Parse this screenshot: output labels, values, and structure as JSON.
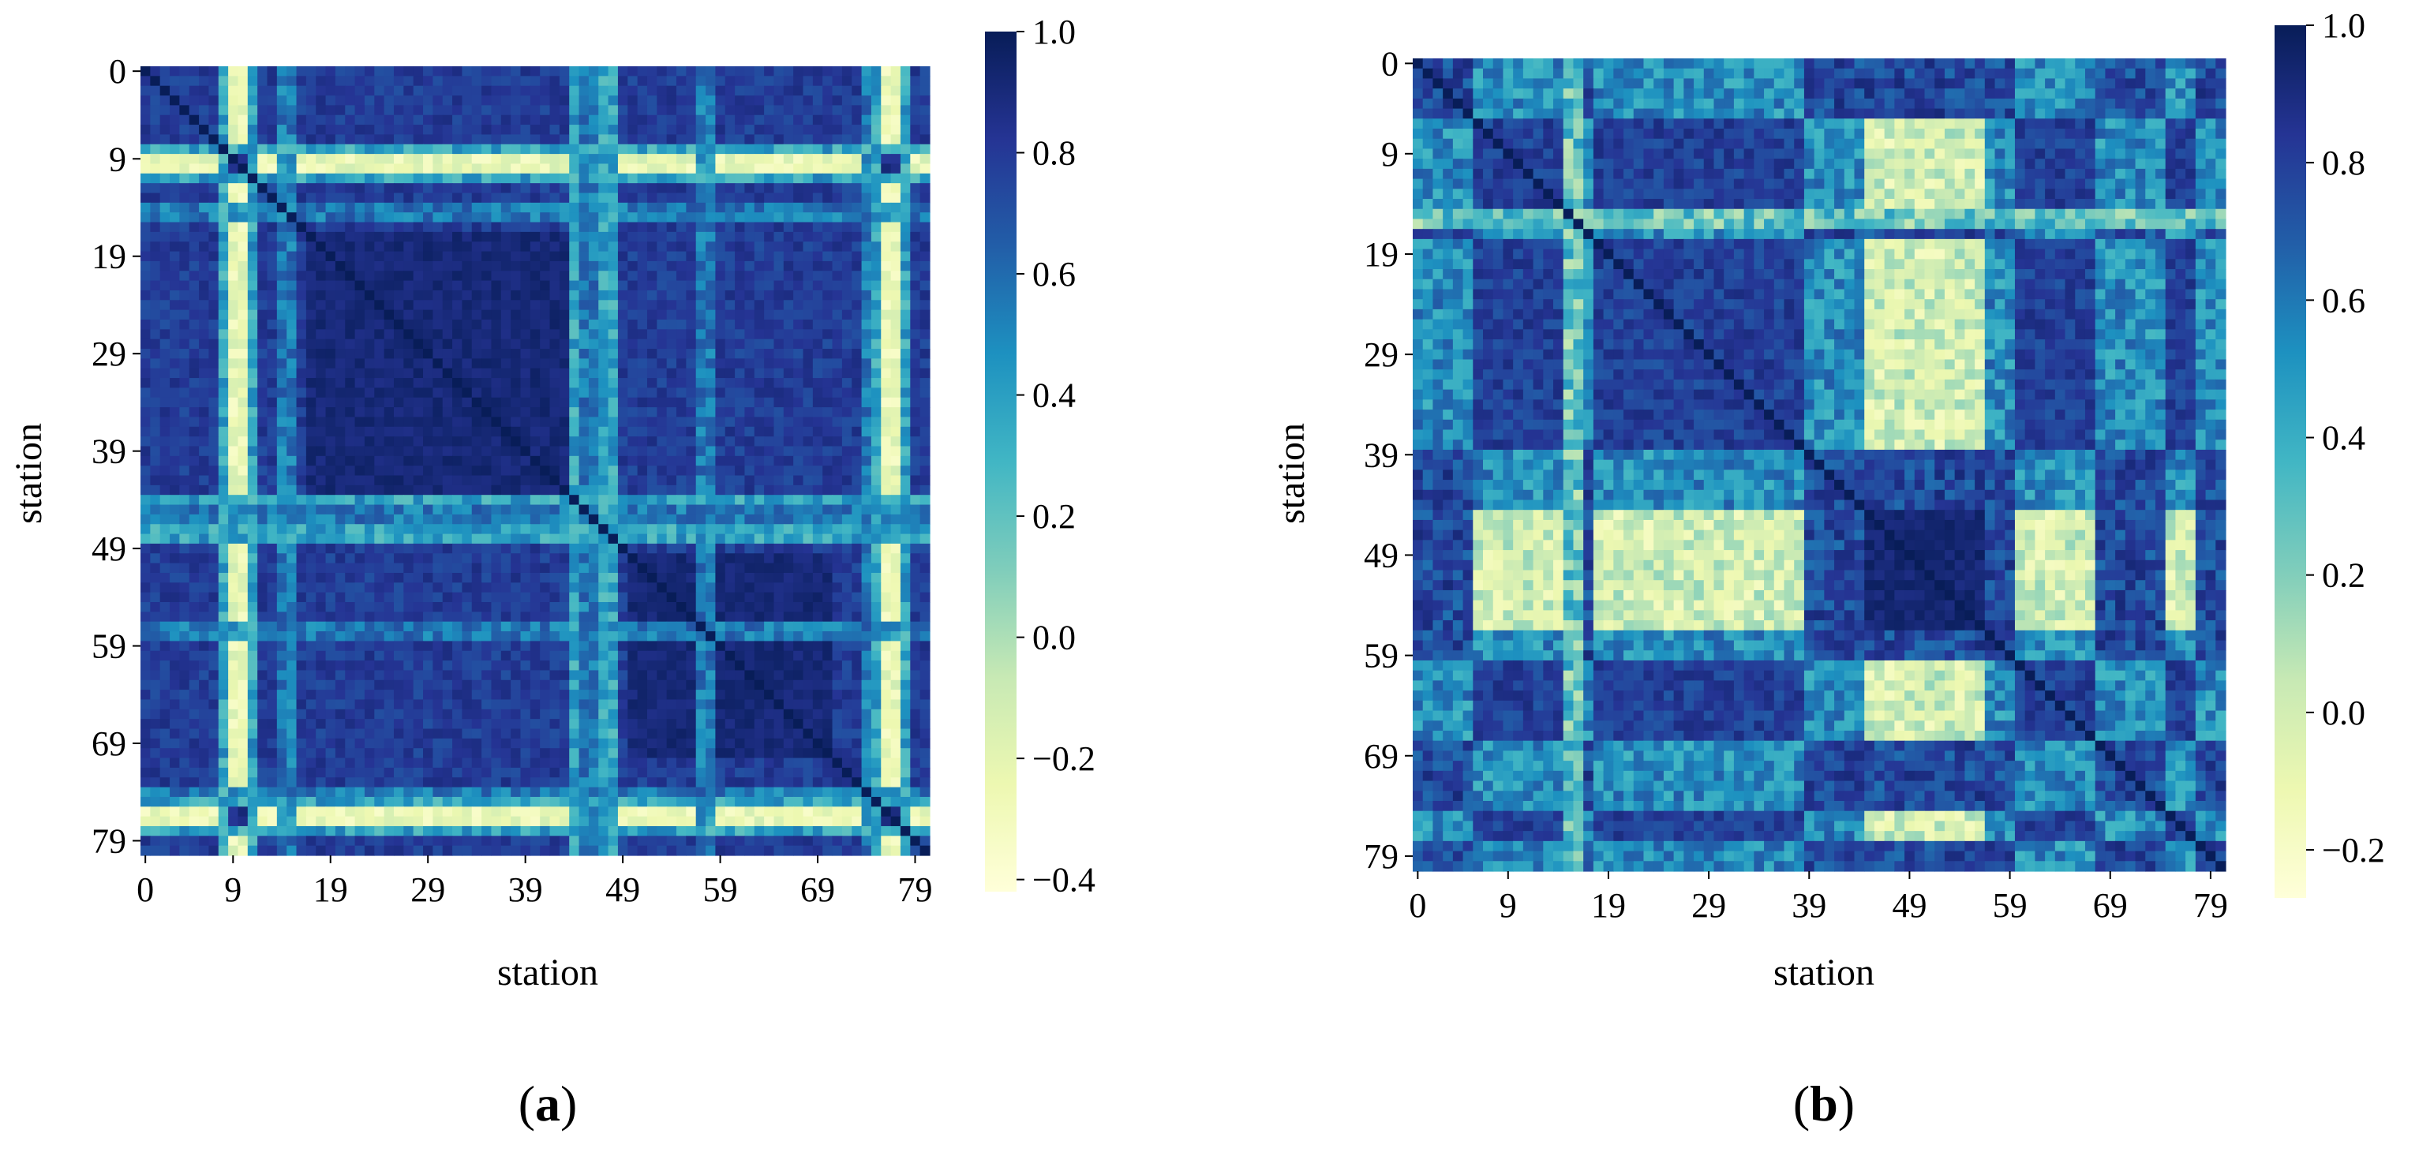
{
  "chart_data": [
    {
      "type": "heatmap",
      "panel": "a",
      "xlabel": "station",
      "ylabel": "station",
      "n": 81,
      "x_ticks": [
        "0",
        "9",
        "19",
        "29",
        "39",
        "49",
        "59",
        "69",
        "79"
      ],
      "y_ticks": [
        "0",
        "9",
        "19",
        "29",
        "39",
        "49",
        "59",
        "69",
        "79"
      ],
      "colorbar": {
        "min": -0.42,
        "max": 1.0,
        "ticks": [
          "1.0",
          "0.8",
          "0.6",
          "0.4",
          "0.2",
          "0.0",
          "−0.2",
          "−0.4"
        ],
        "tick_values": [
          1.0,
          0.8,
          0.6,
          0.4,
          0.2,
          0.0,
          -0.2,
          -0.4
        ]
      },
      "colormap": "YlGnBu",
      "stations": {
        "very_low": [
          9,
          10,
          76,
          77
        ],
        "low": [
          8,
          11,
          44,
          47,
          48,
          75,
          78
        ],
        "medium": [
          14,
          15,
          45,
          46,
          57,
          58,
          74
        ]
      },
      "blocks": [
        [
          17,
          43
        ],
        [
          50,
          70
        ]
      ]
    },
    {
      "type": "heatmap",
      "panel": "b",
      "xlabel": "station",
      "ylabel": "station",
      "n": 81,
      "x_ticks": [
        "0",
        "9",
        "19",
        "29",
        "39",
        "49",
        "59",
        "69",
        "79"
      ],
      "y_ticks": [
        "0",
        "9",
        "19",
        "29",
        "39",
        "49",
        "59",
        "69",
        "79"
      ],
      "colorbar": {
        "min": -0.27,
        "max": 1.0,
        "ticks": [
          "1.0",
          "0.8",
          "0.6",
          "0.4",
          "0.2",
          "0.0",
          "−0.2"
        ],
        "tick_values": [
          1.0,
          0.8,
          0.6,
          0.4,
          0.2,
          0.0,
          -0.2
        ]
      },
      "colormap": "YlGnBu",
      "groups": {
        "A": [
          [
            0,
            5
          ],
          [
            15,
            17
          ],
          [
            39,
            44
          ],
          [
            57,
            59
          ],
          [
            68,
            74
          ],
          [
            78,
            80
          ]
        ],
        "B": [
          [
            6,
            14
          ],
          [
            18,
            38
          ],
          [
            60,
            67
          ],
          [
            75,
            77
          ]
        ],
        "C": [
          [
            45,
            56
          ]
        ]
      },
      "odd_stations": [
        15,
        16
      ]
    }
  ],
  "panel_labels": {
    "a": {
      "open": "(",
      "letter": "a",
      "close": ")"
    },
    "b": {
      "open": "(",
      "letter": "b",
      "close": ")"
    }
  }
}
